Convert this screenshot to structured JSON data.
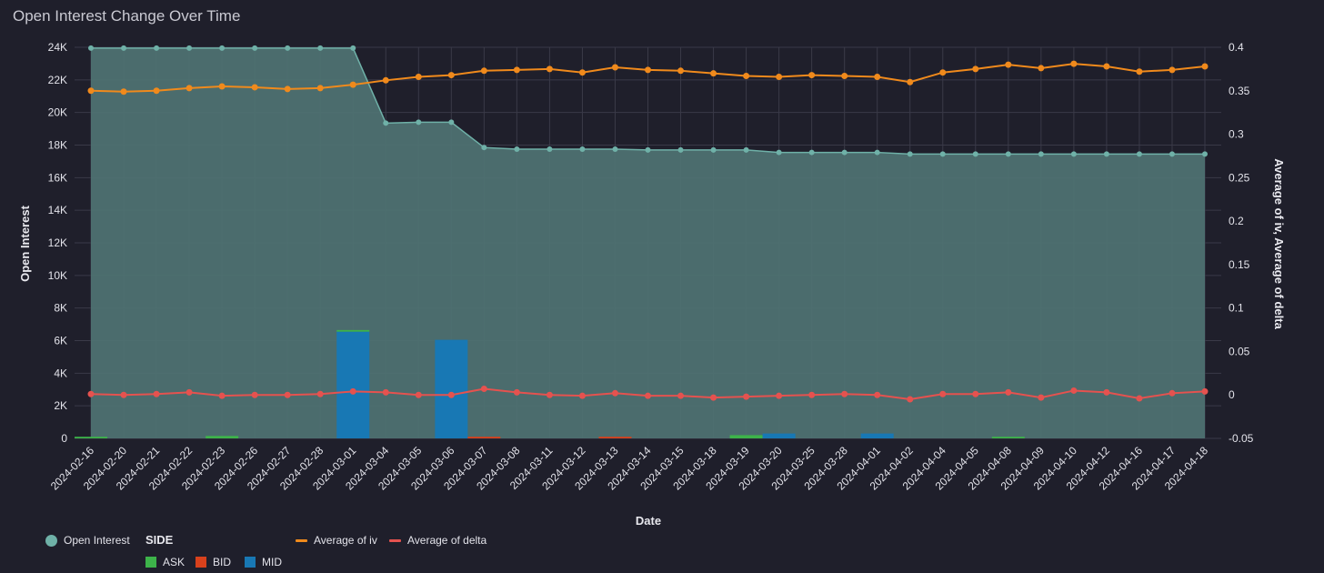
{
  "title": "Open Interest Change Over Time",
  "colors": {
    "background": "#1f1f2b",
    "open_interest_fill": "#4f7373",
    "open_interest_line": "#6fb1a8",
    "ask": "#3db34a",
    "bid": "#d8411c",
    "mid": "#1878b4",
    "iv": "#f08a1c",
    "delta": "#e5524f",
    "grid": "#3a3a48"
  },
  "legend": {
    "open_interest": "Open Interest",
    "side_heading": "SIDE",
    "ask": "ASK",
    "bid": "BID",
    "mid": "MID",
    "iv": "Average of iv",
    "delta": "Average of delta"
  },
  "chart_data": {
    "type": "combo",
    "title": "Open Interest Change Over Time",
    "xlabel": "Date",
    "ylabel_left": "Open Interest",
    "ylabel_right": "Average of iv, Average of delta",
    "left_ylim": [
      0,
      24000
    ],
    "left_ticks": [
      0,
      2000,
      4000,
      6000,
      8000,
      10000,
      12000,
      14000,
      16000,
      18000,
      20000,
      22000,
      24000
    ],
    "left_tick_labels": [
      "0",
      "2K",
      "4K",
      "6K",
      "8K",
      "10K",
      "12K",
      "14K",
      "16K",
      "18K",
      "20K",
      "22K",
      "24K"
    ],
    "right_ylim": [
      -0.05,
      0.4
    ],
    "right_ticks": [
      -0.05,
      0,
      0.05,
      0.1,
      0.15,
      0.2,
      0.25,
      0.3,
      0.35,
      0.4
    ],
    "right_tick_labels": [
      "-0.05",
      "0",
      "0.05",
      "0.1",
      "0.15",
      "0.2",
      "0.25",
      "0.3",
      "0.35",
      "0.4"
    ],
    "grid": true,
    "categories": [
      "2024-02-16",
      "2024-02-20",
      "2024-02-21",
      "2024-02-22",
      "2024-02-23",
      "2024-02-26",
      "2024-02-27",
      "2024-02-28",
      "2024-03-01",
      "2024-03-04",
      "2024-03-05",
      "2024-03-06",
      "2024-03-07",
      "2024-03-08",
      "2024-03-11",
      "2024-03-12",
      "2024-03-13",
      "2024-03-14",
      "2024-03-15",
      "2024-03-18",
      "2024-03-19",
      "2024-03-20",
      "2024-03-25",
      "2024-03-28",
      "2024-04-01",
      "2024-04-02",
      "2024-04-04",
      "2024-04-05",
      "2024-04-08",
      "2024-04-09",
      "2024-04-10",
      "2024-04-12",
      "2024-04-16",
      "2024-04-17",
      "2024-04-18"
    ],
    "open_interest": [
      23950,
      23950,
      23950,
      23950,
      23950,
      23950,
      23950,
      23950,
      23950,
      19350,
      19400,
      19400,
      17850,
      17750,
      17750,
      17750,
      17750,
      17700,
      17700,
      17700,
      17700,
      17550,
      17550,
      17550,
      17550,
      17450,
      17450,
      17450,
      17450,
      17450,
      17450,
      17450,
      17450,
      17450,
      17450
    ],
    "bars": {
      "ASK": [
        100,
        0,
        0,
        0,
        150,
        0,
        0,
        0,
        100,
        0,
        0,
        0,
        0,
        0,
        0,
        0,
        0,
        0,
        0,
        0,
        200,
        0,
        0,
        0,
        0,
        0,
        0,
        0,
        100,
        0,
        0,
        0,
        0,
        0,
        0
      ],
      "BID": [
        0,
        0,
        0,
        0,
        0,
        0,
        0,
        0,
        0,
        0,
        0,
        0,
        100,
        0,
        0,
        0,
        100,
        0,
        0,
        0,
        0,
        0,
        0,
        0,
        0,
        0,
        0,
        0,
        0,
        0,
        0,
        0,
        0,
        0,
        0
      ],
      "MID": [
        0,
        0,
        0,
        0,
        0,
        0,
        0,
        0,
        6550,
        0,
        0,
        6050,
        0,
        0,
        0,
        0,
        0,
        0,
        0,
        0,
        0,
        300,
        0,
        0,
        300,
        0,
        0,
        0,
        0,
        0,
        0,
        0,
        0,
        0,
        0
      ]
    },
    "iv": [
      0.35,
      0.349,
      0.35,
      0.353,
      0.355,
      0.354,
      0.352,
      0.353,
      0.357,
      0.362,
      0.366,
      0.368,
      0.373,
      0.374,
      0.375,
      0.371,
      0.377,
      0.374,
      0.373,
      0.37,
      0.367,
      0.366,
      0.368,
      0.367,
      0.366,
      0.36,
      0.371,
      0.375,
      0.38,
      0.376,
      0.381,
      0.378,
      0.372,
      0.374,
      0.378
    ],
    "delta": [
      0.001,
      0.0,
      0.001,
      0.003,
      -0.001,
      0.0,
      0.0,
      0.001,
      0.004,
      0.003,
      0.0,
      0.0,
      0.007,
      0.003,
      0.0,
      -0.001,
      0.002,
      -0.001,
      -0.001,
      -0.003,
      -0.002,
      -0.001,
      0.0,
      0.001,
      0.0,
      -0.005,
      0.001,
      0.001,
      0.003,
      -0.003,
      0.005,
      0.003,
      -0.004,
      0.002,
      0.004
    ]
  }
}
